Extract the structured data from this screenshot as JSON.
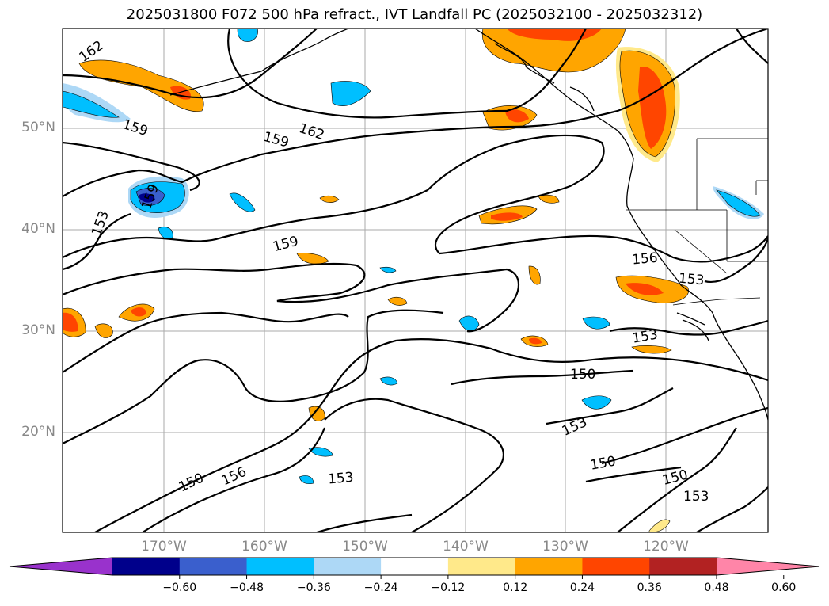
{
  "title": "2025031800 F072 500 hPa refract., IVT Landfall PC (2025032100 - 2025032312)",
  "lat_labels": [
    "50°N",
    "40°N",
    "30°N",
    "20°N"
  ],
  "lon_labels": [
    "170°W",
    "160°W",
    "150°W",
    "140°W",
    "130°W",
    "120°W"
  ],
  "contour_labels": [
    "162",
    "159",
    "162",
    "159",
    "153",
    "159",
    "156",
    "153",
    "153",
    "150",
    "153",
    "150",
    "150",
    "153",
    "150",
    "156",
    "153",
    "159"
  ],
  "colorbar": {
    "colors": [
      "#9932cc",
      "#00008b",
      "#3a5fcd",
      "#00bfff",
      "#add8f6",
      "#ffffff",
      "#ffe98a",
      "#ffa500",
      "#ff4500",
      "#b22222",
      "#ff85a8"
    ],
    "ticks": [
      "−0.60",
      "−0.48",
      "−0.36",
      "−0.24",
      "−0.12",
      "0.12",
      "0.24",
      "0.36",
      "0.48",
      "0.60"
    ]
  }
}
